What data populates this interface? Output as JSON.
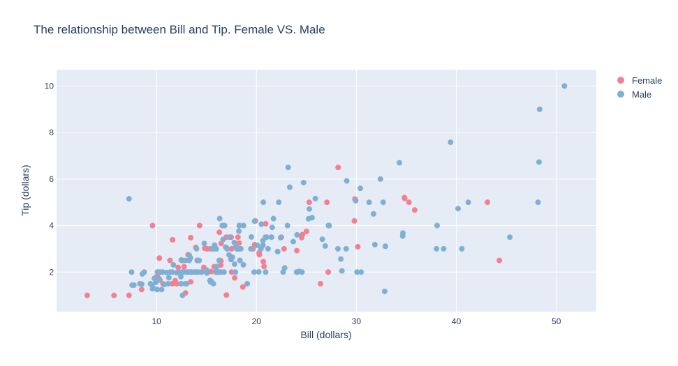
{
  "chart_data": {
    "type": "scatter",
    "title": "The relationship between Bill and Tip. Female VS. Male",
    "xlabel": "Bill (dollars)",
    "ylabel": "Tip (dollars)",
    "xlim": [
      0,
      54
    ],
    "ylim": [
      0.3,
      10.7
    ],
    "xticks": [
      10,
      20,
      30,
      40,
      50
    ],
    "yticks": [
      2,
      4,
      6,
      8,
      10
    ],
    "legend_position": "top-right",
    "series": [
      {
        "name": "Female",
        "color": "#f67f8f",
        "points": [
          [
            3.07,
            1.0
          ],
          [
            5.75,
            1.0
          ],
          [
            7.25,
            1.0
          ],
          [
            8.35,
            1.5
          ],
          [
            8.51,
            1.25
          ],
          [
            9.6,
            4.0
          ],
          [
            10.07,
            1.83
          ],
          [
            10.33,
            2.0
          ],
          [
            10.34,
            1.66
          ],
          [
            10.29,
            2.6
          ],
          [
            10.65,
            1.5
          ],
          [
            11.17,
            1.5
          ],
          [
            11.35,
            2.5
          ],
          [
            11.59,
            1.5
          ],
          [
            12.16,
            2.2
          ],
          [
            12.54,
            2.5
          ],
          [
            12.74,
            2.01
          ],
          [
            12.76,
            2.23
          ],
          [
            12.9,
            1.1
          ],
          [
            13.13,
            2.0
          ],
          [
            13.27,
            2.5
          ],
          [
            13.42,
            3.48
          ],
          [
            13.42,
            1.58
          ],
          [
            13.94,
            3.06
          ],
          [
            14.07,
            2.5
          ],
          [
            14.15,
            2.0
          ],
          [
            14.26,
            2.5
          ],
          [
            14.31,
            4.0
          ],
          [
            14.83,
            3.02
          ],
          [
            15.06,
            3.0
          ],
          [
            15.38,
            3.0
          ],
          [
            15.69,
            3.0
          ],
          [
            16.27,
            2.5
          ],
          [
            16.29,
            3.71
          ],
          [
            16.31,
            2.0
          ],
          [
            16.4,
            2.5
          ],
          [
            16.43,
            2.3
          ],
          [
            16.45,
            2.47
          ],
          [
            16.47,
            3.23
          ],
          [
            16.58,
            4.0
          ],
          [
            16.97,
            3.5
          ],
          [
            17.07,
            3.0
          ],
          [
            17.31,
            3.5
          ],
          [
            17.51,
            3.0
          ],
          [
            17.82,
            1.75
          ],
          [
            18.15,
            3.5
          ],
          [
            18.26,
            3.25
          ],
          [
            18.28,
            4.0
          ],
          [
            18.29,
            3.0
          ],
          [
            18.43,
            3.0
          ],
          [
            18.64,
            1.36
          ],
          [
            19.82,
            3.18
          ],
          [
            19.89,
            4.2
          ],
          [
            20.27,
            2.83
          ],
          [
            20.29,
            2.75
          ],
          [
            20.92,
            4.08
          ],
          [
            20.69,
            2.45
          ],
          [
            22.12,
            2.88
          ],
          [
            22.76,
            3.0
          ],
          [
            24.04,
            2.92
          ],
          [
            24.59,
            3.61
          ],
          [
            25.0,
            3.75
          ],
          [
            25.28,
            5.0
          ],
          [
            26.41,
            1.5
          ],
          [
            27.05,
            5.0
          ],
          [
            27.18,
            2.0
          ],
          [
            28.17,
            6.5
          ],
          [
            29.85,
            5.14
          ],
          [
            29.8,
            4.2
          ],
          [
            30.14,
            3.09
          ],
          [
            34.83,
            5.17
          ],
          [
            35.26,
            5.0
          ],
          [
            35.83,
            4.67
          ],
          [
            43.11,
            5.0
          ],
          [
            44.3,
            2.5
          ],
          [
            16.0,
            2.0
          ],
          [
            12.66,
            2.5
          ],
          [
            16.93,
            3.07
          ],
          [
            11.87,
            1.63
          ],
          [
            19.65,
            3.0
          ],
          [
            15.48,
            2.02
          ],
          [
            34.81,
            5.2
          ],
          [
            20.76,
            2.24
          ],
          [
            15.77,
            2.23
          ],
          [
            13.16,
            2.75
          ],
          [
            17.47,
            3.5
          ],
          [
            15.36,
            1.64
          ],
          [
            12.03,
            1.5
          ],
          [
            13.51,
            2.0
          ],
          [
            24.52,
            3.48
          ],
          [
            21.01,
            3.5
          ],
          [
            22.49,
            3.5
          ],
          [
            17.51,
            2.0
          ],
          [
            14.73,
            2.2
          ],
          [
            15.98,
            3.0
          ],
          [
            16.21,
            2.0
          ],
          [
            12.26,
            2.0
          ],
          [
            18.35,
            2.5
          ],
          [
            15.95,
            2.0
          ],
          [
            16.99,
            1.01
          ],
          [
            15.42,
            1.57
          ],
          [
            11.61,
            3.39
          ],
          [
            21.5,
            3.5
          ]
        ]
      },
      {
        "name": "Male",
        "color": "#7fb0d4",
        "points": [
          [
            7.25,
            5.15
          ],
          [
            7.51,
            2.0
          ],
          [
            7.56,
            1.44
          ],
          [
            7.74,
            1.44
          ],
          [
            8.52,
            1.48
          ],
          [
            8.58,
            1.92
          ],
          [
            8.77,
            2.0
          ],
          [
            9.55,
            1.45
          ],
          [
            9.68,
            1.32
          ],
          [
            9.78,
            1.73
          ],
          [
            9.94,
            1.56
          ],
          [
            10.07,
            1.25
          ],
          [
            10.27,
            1.71
          ],
          [
            10.34,
            2.0
          ],
          [
            10.51,
            1.25
          ],
          [
            10.63,
            2.0
          ],
          [
            10.77,
            1.47
          ],
          [
            11.02,
            1.98
          ],
          [
            11.24,
            1.76
          ],
          [
            11.38,
            2.0
          ],
          [
            11.69,
            2.31
          ],
          [
            12.02,
            1.97
          ],
          [
            12.43,
            1.8
          ],
          [
            12.46,
            1.5
          ],
          [
            12.48,
            2.52
          ],
          [
            12.6,
            1.0
          ],
          [
            12.69,
            2.0
          ],
          [
            12.9,
            1.5
          ],
          [
            13.0,
            2.0
          ],
          [
            13.28,
            2.72
          ],
          [
            13.37,
            2.0
          ],
          [
            13.39,
            2.61
          ],
          [
            13.81,
            2.0
          ],
          [
            13.94,
            2.0
          ],
          [
            14.0,
            3.0
          ],
          [
            14.48,
            2.0
          ],
          [
            14.52,
            2.0
          ],
          [
            14.78,
            3.23
          ],
          [
            15.01,
            2.09
          ],
          [
            15.04,
            1.96
          ],
          [
            15.48,
            1.6
          ],
          [
            15.53,
            3.0
          ],
          [
            15.81,
            3.16
          ],
          [
            15.98,
            2.03
          ],
          [
            16.04,
            2.24
          ],
          [
            16.21,
            2.0
          ],
          [
            16.32,
            4.3
          ],
          [
            16.49,
            2.0
          ],
          [
            16.66,
            3.4
          ],
          [
            16.82,
            4.0
          ],
          [
            16.93,
            3.07
          ],
          [
            17.26,
            2.74
          ],
          [
            17.46,
            2.54
          ],
          [
            17.59,
            2.64
          ],
          [
            17.78,
            3.27
          ],
          [
            17.81,
            2.34
          ],
          [
            17.92,
            3.08
          ],
          [
            18.04,
            3.0
          ],
          [
            18.15,
            3.0
          ],
          [
            18.24,
            3.76
          ],
          [
            18.29,
            4.0
          ],
          [
            18.71,
            4.0
          ],
          [
            18.69,
            2.31
          ],
          [
            19.08,
            1.5
          ],
          [
            19.49,
            3.51
          ],
          [
            19.77,
            2.0
          ],
          [
            19.81,
            4.19
          ],
          [
            20.08,
            3.15
          ],
          [
            20.23,
            2.01
          ],
          [
            20.45,
            3.0
          ],
          [
            20.49,
            4.06
          ],
          [
            20.65,
            3.35
          ],
          [
            20.69,
            5.0
          ],
          [
            20.9,
            3.5
          ],
          [
            21.01,
            3.5
          ],
          [
            21.16,
            3.0
          ],
          [
            21.58,
            3.92
          ],
          [
            21.7,
            4.3
          ],
          [
            22.23,
            5.0
          ],
          [
            22.42,
            3.48
          ],
          [
            22.67,
            2.0
          ],
          [
            22.82,
            2.18
          ],
          [
            23.1,
            4.0
          ],
          [
            23.17,
            6.5
          ],
          [
            23.33,
            5.65
          ],
          [
            23.68,
            3.31
          ],
          [
            24.01,
            2.0
          ],
          [
            24.06,
            3.6
          ],
          [
            24.27,
            2.03
          ],
          [
            24.55,
            2.0
          ],
          [
            24.71,
            5.85
          ],
          [
            25.21,
            4.29
          ],
          [
            25.29,
            4.71
          ],
          [
            25.56,
            4.34
          ],
          [
            25.89,
            5.16
          ],
          [
            26.59,
            3.41
          ],
          [
            26.88,
            3.12
          ],
          [
            27.2,
            4.0
          ],
          [
            27.28,
            4.0
          ],
          [
            28.15,
            3.0
          ],
          [
            28.44,
            2.56
          ],
          [
            28.55,
            2.05
          ],
          [
            28.97,
            3.0
          ],
          [
            29.03,
            5.92
          ],
          [
            29.93,
            5.07
          ],
          [
            30.06,
            2.0
          ],
          [
            30.4,
            5.6
          ],
          [
            30.46,
            2.0
          ],
          [
            31.27,
            5.0
          ],
          [
            31.71,
            4.5
          ],
          [
            31.85,
            3.18
          ],
          [
            32.4,
            6.0
          ],
          [
            32.68,
            5.0
          ],
          [
            32.83,
            1.17
          ],
          [
            32.9,
            3.11
          ],
          [
            34.3,
            6.7
          ],
          [
            34.63,
            3.55
          ],
          [
            34.65,
            3.68
          ],
          [
            38.01,
            3.0
          ],
          [
            38.07,
            4.0
          ],
          [
            38.73,
            3.0
          ],
          [
            39.42,
            7.58
          ],
          [
            40.17,
            4.73
          ],
          [
            40.55,
            3.0
          ],
          [
            41.19,
            5.0
          ],
          [
            45.35,
            3.5
          ],
          [
            48.17,
            5.0
          ],
          [
            48.27,
            6.73
          ],
          [
            48.33,
            9.0
          ],
          [
            50.81,
            10.0
          ],
          [
            13.27,
            2.5
          ],
          [
            14.15,
            2.0
          ],
          [
            15.69,
            1.5
          ],
          [
            9.6,
            1.28
          ],
          [
            11.59,
            2.0
          ],
          [
            13.42,
            2.0
          ],
          [
            16.0,
            2.0
          ],
          [
            12.54,
            2.0
          ],
          [
            10.09,
            2.0
          ],
          [
            16.58,
            4.0
          ],
          [
            18.35,
            2.5
          ],
          [
            17.07,
            3.0
          ],
          [
            15.36,
            1.64
          ],
          [
            12.74,
            2.01
          ],
          [
            14.26,
            2.5
          ],
          [
            17.89,
            2.0
          ],
          [
            19.44,
            3.0
          ],
          [
            20.92,
            2.0
          ],
          [
            20.65,
            3.15
          ],
          [
            8.35,
            1.5
          ],
          [
            9.4,
            1.5
          ],
          [
            11.17,
            1.5
          ],
          [
            13.0,
            1.5
          ],
          [
            15.42,
            1.57
          ],
          [
            13.39,
            2.61
          ],
          [
            17.31,
            3.5
          ],
          [
            18.26,
            3.0
          ],
          [
            17.47,
            2.6
          ],
          [
            12.9,
            2.5
          ],
          [
            13.51,
            2.0
          ],
          [
            15.98,
            3.0
          ],
          [
            16.27,
            2.5
          ],
          [
            10.34,
            2.0
          ],
          [
            14.07,
            2.5
          ],
          [
            21.5,
            3.5
          ],
          [
            24.08,
            2.0
          ],
          [
            16.31,
            2.0
          ],
          [
            18.43,
            3.0
          ],
          [
            15.04,
            2.0
          ],
          [
            12.16,
            2.0
          ],
          [
            16.76,
            2.0
          ],
          [
            22.12,
            2.88
          ]
        ]
      }
    ]
  }
}
